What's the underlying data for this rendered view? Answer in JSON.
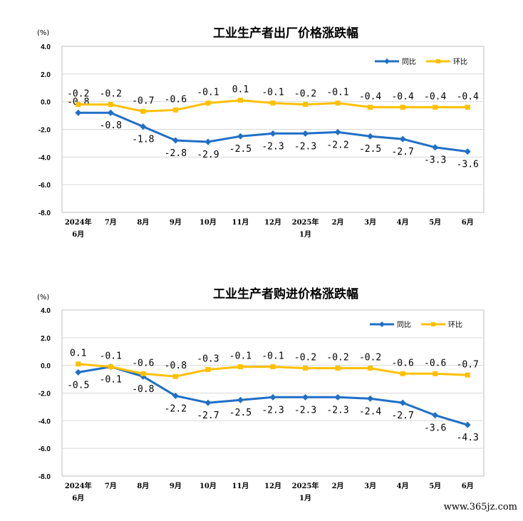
{
  "watermark": "www.365jz.com",
  "colors": {
    "yoy": "#1f6fc6",
    "mom": "#ffc000",
    "grid": "#d9d9d9",
    "frame": "#bfbfbf"
  },
  "chart_data": [
    {
      "type": "line",
      "title": "工业生产者出厂价格涨跌幅",
      "unit": "(%)",
      "ylim": [
        -8.0,
        4.0
      ],
      "yticks": [
        "4.0",
        "2.0",
        "0.0",
        "-2.0",
        "-4.0",
        "-6.0",
        "-8.0"
      ],
      "categories": [
        [
          "2024年",
          "6月"
        ],
        [
          "7月"
        ],
        [
          "8月"
        ],
        [
          "9月"
        ],
        [
          "10月"
        ],
        [
          "11月"
        ],
        [
          "12月"
        ],
        [
          "2025年",
          "1月"
        ],
        [
          "2月"
        ],
        [
          "3月"
        ],
        [
          "4月"
        ],
        [
          "5月"
        ],
        [
          "6月"
        ]
      ],
      "legend_position": "top-right",
      "series": [
        {
          "name": "同比",
          "color": "#1f6fc6",
          "marker": "diamond",
          "values": [
            -0.8,
            -0.8,
            -1.8,
            -2.8,
            -2.9,
            -2.5,
            -2.3,
            -2.3,
            -2.2,
            -2.5,
            -2.7,
            -3.3,
            -3.6
          ],
          "labels": [
            "-0.8",
            "-0.8",
            "-1.8",
            "-2.8",
            "-2.9",
            "-2.5",
            "-2.3",
            "-2.3",
            "-2.2",
            "-2.5",
            "-2.7",
            "-3.3",
            "-3.6"
          ]
        },
        {
          "name": "环比",
          "color": "#ffc000",
          "marker": "square",
          "values": [
            -0.2,
            -0.2,
            -0.7,
            -0.6,
            -0.1,
            0.1,
            -0.1,
            -0.2,
            -0.1,
            -0.4,
            -0.4,
            -0.4,
            -0.4
          ],
          "labels": [
            "-0.2",
            "-0.2",
            "-0.7",
            "-0.6",
            "-0.1",
            "0.1",
            "-0.1",
            "-0.2",
            "-0.1",
            "-0.4",
            "-0.4",
            "-0.4",
            "-0.4"
          ]
        }
      ]
    },
    {
      "type": "line",
      "title": "工业生产者购进价格涨跌幅",
      "unit": "(%)",
      "ylim": [
        -8.0,
        4.0
      ],
      "yticks": [
        "4.0",
        "2.0",
        "0.0",
        "-2.0",
        "-4.0",
        "-6.0",
        "-8.0"
      ],
      "categories": [
        [
          "2024年",
          "6月"
        ],
        [
          "7月"
        ],
        [
          "8月"
        ],
        [
          "9月"
        ],
        [
          "10月"
        ],
        [
          "11月"
        ],
        [
          "12月"
        ],
        [
          "2025年",
          "1月"
        ],
        [
          "2月"
        ],
        [
          "3月"
        ],
        [
          "4月"
        ],
        [
          "5月"
        ],
        [
          "6月"
        ]
      ],
      "legend_position": "top-right",
      "series": [
        {
          "name": "同比",
          "color": "#1f6fc6",
          "marker": "diamond",
          "values": [
            -0.5,
            -0.1,
            -0.8,
            -2.2,
            -2.7,
            -2.5,
            -2.3,
            -2.3,
            -2.3,
            -2.4,
            -2.7,
            -3.6,
            -4.3
          ],
          "labels": [
            "-0.5",
            "-0.1",
            "-0.8",
            "-2.2",
            "-2.7",
            "-2.5",
            "-2.3",
            "-2.3",
            "-2.3",
            "-2.4",
            "-2.7",
            "-3.6",
            "-4.3"
          ]
        },
        {
          "name": "环比",
          "color": "#ffc000",
          "marker": "square",
          "values": [
            0.1,
            -0.1,
            -0.6,
            -0.8,
            -0.3,
            -0.1,
            -0.1,
            -0.2,
            -0.2,
            -0.2,
            -0.6,
            -0.6,
            -0.7
          ],
          "labels": [
            "0.1",
            "-0.1",
            "-0.6",
            "-0.8",
            "-0.3",
            "-0.1",
            "-0.1",
            "-0.2",
            "-0.2",
            "-0.2",
            "-0.6",
            "-0.6",
            "-0.7"
          ]
        }
      ]
    }
  ]
}
